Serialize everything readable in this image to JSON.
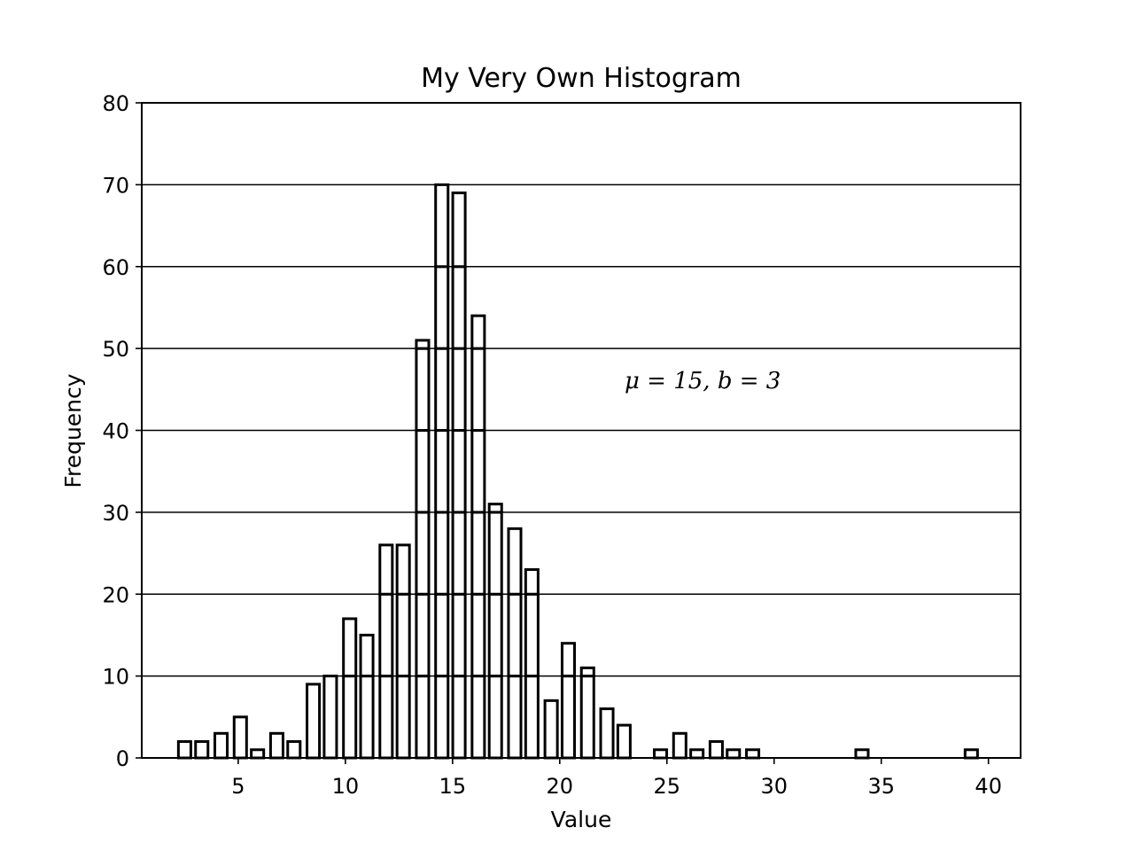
{
  "chart_data": {
    "type": "bar",
    "title": "My Very Own Histogram",
    "xlabel": "Value",
    "ylabel": "Frequency",
    "annotation": "μ = 15, b = 3",
    "xlim": [
      0.5,
      41.5
    ],
    "ylim": [
      0,
      80
    ],
    "xticks": [
      5,
      10,
      15,
      20,
      25,
      30,
      35,
      40
    ],
    "yticks": [
      0,
      10,
      20,
      30,
      40,
      50,
      60,
      70,
      80
    ],
    "grid": "horizontal",
    "bar_style": "white fill, black outline, stacked by 10",
    "bars": [
      {
        "x": 2.5,
        "y": 2
      },
      {
        "x": 3.3,
        "y": 2
      },
      {
        "x": 4.2,
        "y": 3
      },
      {
        "x": 5.1,
        "y": 5
      },
      {
        "x": 5.9,
        "y": 1
      },
      {
        "x": 6.8,
        "y": 3
      },
      {
        "x": 7.6,
        "y": 2
      },
      {
        "x": 8.5,
        "y": 9
      },
      {
        "x": 9.3,
        "y": 10
      },
      {
        "x": 10.2,
        "y": 17
      },
      {
        "x": 11.0,
        "y": 15
      },
      {
        "x": 11.9,
        "y": 26
      },
      {
        "x": 12.7,
        "y": 26
      },
      {
        "x": 13.6,
        "y": 51
      },
      {
        "x": 14.5,
        "y": 70
      },
      {
        "x": 15.3,
        "y": 69
      },
      {
        "x": 16.2,
        "y": 54
      },
      {
        "x": 17.0,
        "y": 31
      },
      {
        "x": 17.9,
        "y": 28
      },
      {
        "x": 18.7,
        "y": 23
      },
      {
        "x": 19.6,
        "y": 7
      },
      {
        "x": 20.4,
        "y": 14
      },
      {
        "x": 21.3,
        "y": 11
      },
      {
        "x": 22.2,
        "y": 6
      },
      {
        "x": 23.0,
        "y": 4
      },
      {
        "x": 24.7,
        "y": 1
      },
      {
        "x": 25.6,
        "y": 3
      },
      {
        "x": 26.4,
        "y": 1
      },
      {
        "x": 27.3,
        "y": 2
      },
      {
        "x": 28.1,
        "y": 1
      },
      {
        "x": 29.0,
        "y": 1
      },
      {
        "x": 34.1,
        "y": 1
      },
      {
        "x": 39.2,
        "y": 1
      }
    ]
  }
}
